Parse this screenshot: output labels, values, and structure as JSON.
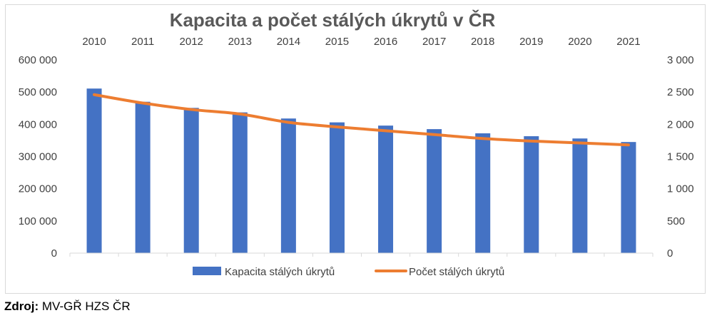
{
  "chart_data": {
    "type": "bar",
    "title": "Kapacita a počet stálých úkrytů v ČR",
    "categories": [
      "2010",
      "2011",
      "2012",
      "2013",
      "2014",
      "2015",
      "2016",
      "2017",
      "2018",
      "2019",
      "2020",
      "2021"
    ],
    "series": [
      {
        "name": "Kapacita stálých úkrytů",
        "type": "bar",
        "axis": "left",
        "values": [
          511000,
          470000,
          451000,
          437000,
          418000,
          406000,
          396000,
          385000,
          372000,
          363000,
          356000,
          345000
        ],
        "color": "#4472c4"
      },
      {
        "name": "Počet stálých úkrytů",
        "type": "line",
        "axis": "right",
        "values": [
          2460,
          2330,
          2230,
          2160,
          2030,
          1960,
          1900,
          1840,
          1780,
          1740,
          1710,
          1680
        ],
        "color": "#ed7d31"
      }
    ],
    "y_left": {
      "min": 0,
      "max": 600000,
      "ticks": [
        "0",
        "100 000",
        "200 000",
        "300 000",
        "400 000",
        "500 000",
        "600 000"
      ]
    },
    "y_right": {
      "min": 0,
      "max": 3000,
      "ticks": [
        "0",
        "500",
        "1 000",
        "1 500",
        "2 000",
        "2 500",
        "3 000"
      ]
    },
    "x_axis_position": "top",
    "grid": false,
    "legend_position": "bottom"
  },
  "source": {
    "label": "Zdroj:",
    "text": " MV-GŘ HZS ČR"
  }
}
